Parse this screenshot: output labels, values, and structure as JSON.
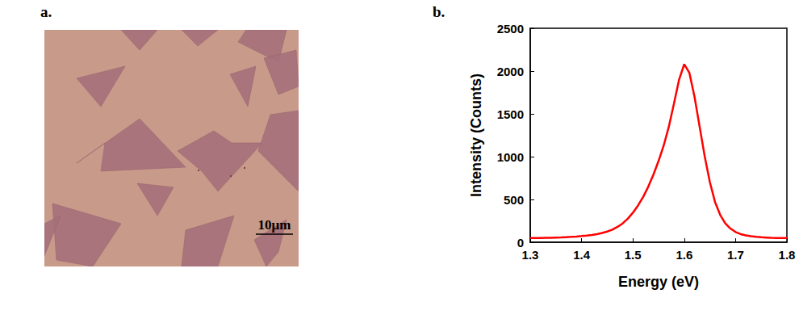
{
  "image_panel": {
    "panel_label": "a.",
    "scale_bar_label": "10μm"
  },
  "chart_data": {
    "type": "line",
    "panel_label": "b.",
    "x_label": "Energy (eV)",
    "y_label": "Intensity (Counts)",
    "x": [
      1.3,
      1.31,
      1.32,
      1.33,
      1.34,
      1.35,
      1.36,
      1.37,
      1.38,
      1.39,
      1.4,
      1.41,
      1.42,
      1.43,
      1.44,
      1.45,
      1.46,
      1.47,
      1.48,
      1.49,
      1.5,
      1.51,
      1.52,
      1.53,
      1.54,
      1.55,
      1.56,
      1.57,
      1.58,
      1.59,
      1.6,
      1.61,
      1.62,
      1.63,
      1.64,
      1.65,
      1.66,
      1.67,
      1.68,
      1.69,
      1.7,
      1.71,
      1.72,
      1.73,
      1.74,
      1.75,
      1.76,
      1.77,
      1.78,
      1.79,
      1.8
    ],
    "values": [
      50,
      50,
      50,
      52,
      53,
      55,
      57,
      60,
      63,
      67,
      72,
      78,
      85,
      95,
      108,
      125,
      148,
      180,
      220,
      275,
      345,
      430,
      530,
      650,
      790,
      950,
      1130,
      1350,
      1620,
      1900,
      2080,
      1980,
      1700,
      1350,
      1000,
      700,
      470,
      320,
      220,
      160,
      120,
      95,
      80,
      70,
      63,
      58,
      55,
      52,
      50,
      50,
      50
    ],
    "color": "#ff0000",
    "xlim": [
      1.3,
      1.8
    ],
    "xticks": [
      1.3,
      1.4,
      1.5,
      1.6,
      1.7,
      1.8
    ],
    "ylim": [
      0,
      2500
    ],
    "yticks": [
      0,
      500,
      1000,
      1500,
      2000,
      2500
    ],
    "grid": false
  }
}
